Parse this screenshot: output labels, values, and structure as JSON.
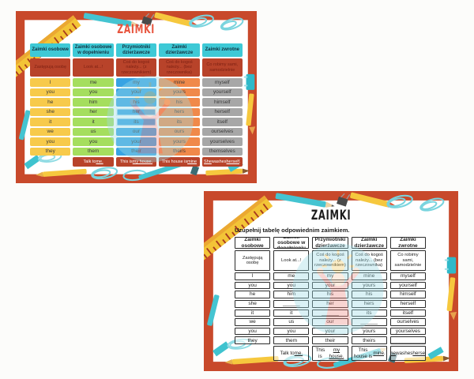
{
  "colors": {
    "frame": "#c8492b",
    "header_bg": "#3ec9d6",
    "desc_bg": "#b8432a",
    "example_bg": "#b8432a",
    "poster_title": "#e8553e",
    "column_colors": [
      "#f7ca4b",
      "#a5de5e",
      "#38a3e3",
      "#f0894a",
      "#a7a7a7"
    ]
  },
  "poster": {
    "title": "ZAIMKI",
    "columns": [
      {
        "header": "Zaimki osobowe",
        "desc": "Zastępują osobę",
        "color": "#f7ca4b"
      },
      {
        "header": "Zaimki osobowe w dopełnieniu",
        "desc": "Look at...!",
        "color": "#a5de5e"
      },
      {
        "header": "Przymiotniki dzierżawcze",
        "desc": "Coś do kogoś należy... (z rzeczownikiem)",
        "color": "#38a3e3"
      },
      {
        "header": "Zaimki dzierżawcze",
        "desc": "Coś do kogoś należy... (bez rzeczownika)",
        "color": "#f0894a"
      },
      {
        "header": "Zaimki zwrotne",
        "desc": "Co robimy sami, samodzielnie",
        "color": "#a7a7a7"
      }
    ],
    "rows": [
      [
        "I",
        "me",
        "my",
        "mine",
        "myself"
      ],
      [
        "you",
        "you",
        "your",
        "yours",
        "yourself"
      ],
      [
        "he",
        "him",
        "his",
        "his",
        "himself"
      ],
      [
        "she",
        "her",
        "her",
        "hers",
        "herself"
      ],
      [
        "it",
        "it",
        "its",
        "its",
        "itself"
      ],
      [
        "we",
        "us",
        "our",
        "ours",
        "ourselves"
      ],
      [
        "you",
        "you",
        "your",
        "yours",
        "yourselves"
      ],
      [
        "they",
        "them",
        "their",
        "theirs",
        "themselves"
      ]
    ],
    "boxed_cells": [
      [
        3,
        2
      ],
      [
        4,
        2
      ]
    ],
    "examples": [
      [
        {
          "t": "Talk to ",
          "u": false
        },
        {
          "t": "me.",
          "u": true
        }
      ],
      [
        {
          "t": "This is ",
          "u": false
        },
        {
          "t": "my house.",
          "u": true
        }
      ],
      [
        {
          "t": "This house is ",
          "u": false
        },
        {
          "t": "mine",
          "u": true
        }
      ],
      [
        {
          "t": "She",
          "u": true
        },
        {
          "t": " washes ",
          "u": false
        },
        {
          "t": "herself",
          "u": true
        },
        {
          "t": ".",
          "u": false
        }
      ]
    ]
  },
  "worksheet": {
    "title": "ZAIMKI",
    "instruction": "Uzupełnij tabelę odpowiednim zaimkiem.",
    "columns": [
      {
        "header": "Zaimki osobowe",
        "desc": "Zastępują osobę"
      },
      {
        "header": "Zaimki osobowe w dopełnieniu",
        "desc": "Look at...!"
      },
      {
        "header": "Przymiotniki dzierżawcze",
        "desc": "Coś do kogoś należy... (z rzeczownikiem)"
      },
      {
        "header": "Zaimki dzierżawcze",
        "desc": "Coś do kogoś należy... (bez rzeczownika)"
      },
      {
        "header": "Zaimki zwrotne",
        "desc": "Co robimy sami, samodzielnie"
      }
    ],
    "rows": [
      [
        "I",
        "me",
        "my",
        "mine",
        "myself"
      ],
      [
        "you",
        "you",
        "your",
        "yours",
        "yourself"
      ],
      [
        "he",
        "him",
        "his",
        "his",
        "himself"
      ],
      [
        "she",
        "______",
        "her",
        "hers",
        "herself"
      ],
      [
        "it",
        "it",
        "______",
        "its",
        "itself"
      ],
      [
        "we",
        "us",
        "our",
        "______",
        "ourselves"
      ],
      [
        "you",
        "you",
        "your",
        "yours",
        "yourselves"
      ],
      [
        "they",
        "them",
        "their",
        "theirs",
        "____________"
      ]
    ],
    "examples": [
      [
        {
          "t": "Talk to ",
          "u": false
        },
        {
          "t": "me.",
          "u": true
        }
      ],
      [
        {
          "t": "This is ",
          "u": false
        },
        {
          "t": "my house.",
          "u": true
        }
      ],
      [
        {
          "t": "This house is ",
          "u": false
        },
        {
          "t": "mine",
          "u": true
        },
        {
          "t": ".",
          "u": false
        }
      ],
      [
        {
          "t": "She",
          "u": true
        },
        {
          "t": " washes ",
          "u": false
        },
        {
          "t": "herself",
          "u": true
        },
        {
          "t": ".",
          "u": false
        }
      ]
    ]
  }
}
